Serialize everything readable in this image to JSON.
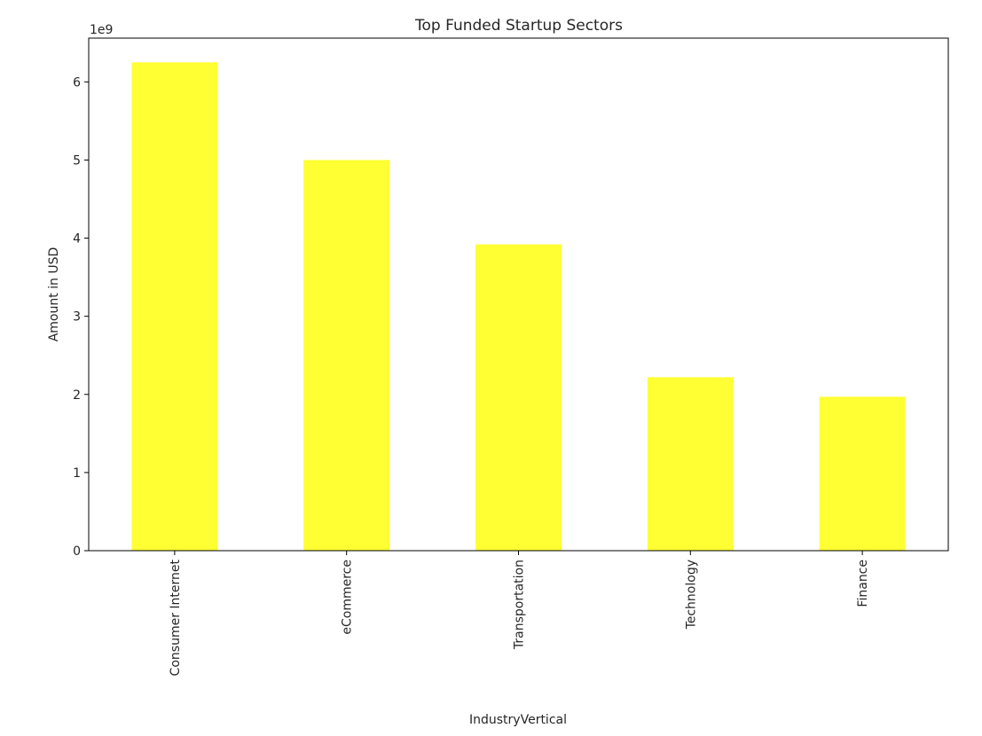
{
  "chart_data": {
    "type": "bar",
    "title": "Top Funded Startup Sectors",
    "xlabel": "IndustryVertical",
    "ylabel": "Amount in USD",
    "y_offset_label": "1e9",
    "categories": [
      "Consumer Internet",
      "eCommerce",
      "Transportation",
      "Technology",
      "Finance"
    ],
    "values": [
      6.25,
      5.0,
      3.92,
      2.22,
      1.97
    ],
    "value_scale": 1000000000,
    "yticks": [
      "0",
      "1",
      "2",
      "3",
      "4",
      "5",
      "6"
    ],
    "ylim": [
      0,
      6.56
    ],
    "grid": false,
    "legend": false,
    "bar_color": "#ffff33"
  }
}
